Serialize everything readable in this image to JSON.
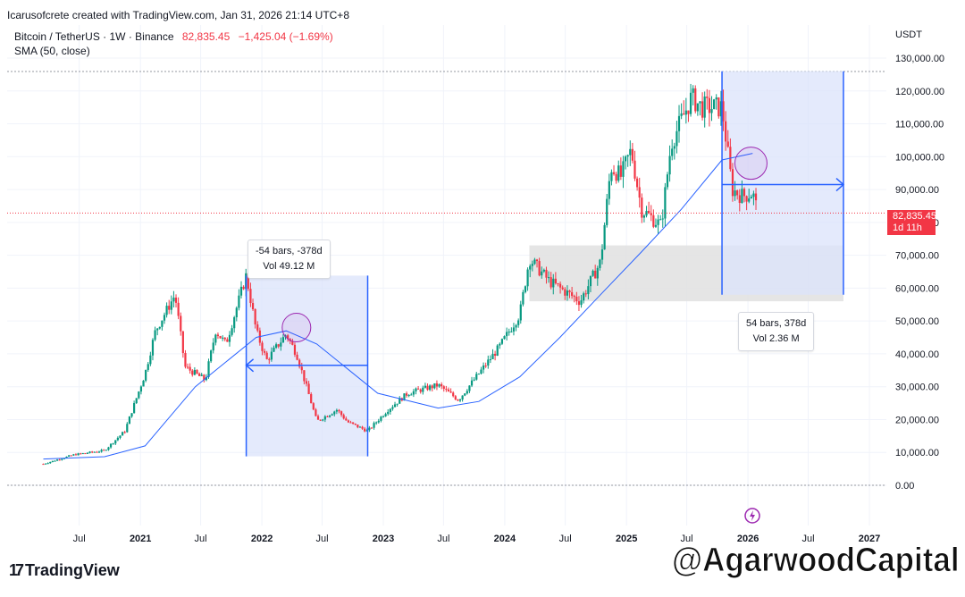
{
  "attribution": "Icarusofcrete created with TradingView.com, Jan 31, 2026 21:14 UTC+8",
  "header": {
    "symbol": "Bitcoin / TetherUS · 1W · Binance",
    "last": "82,835.45",
    "change": "−1,425.04 (−1.69%)",
    "indicator": "SMA (50, close)"
  },
  "currency": "USDT",
  "price_label": {
    "price": "82,835.45",
    "countdown": "1d 11h"
  },
  "left_measure": {
    "bars": "-54 bars, -378d",
    "vol": "Vol 49.12 M"
  },
  "right_measure": {
    "bars": "54 bars, 378d",
    "vol": "Vol 2.36 M"
  },
  "brand": "TradingView",
  "watermark": "@AgarwoodCapital",
  "colors": {
    "up": "#089981",
    "down": "#f23645",
    "sma": "#2962ff",
    "measure_fill": "#dbe3fb",
    "measure_line": "#2962ff",
    "zone": "#e0e0e0",
    "circle": "#9c27b0"
  },
  "chart_data": {
    "type": "candlestick",
    "title": "Bitcoin / TetherUS · 1W · Binance",
    "ylim": [
      0,
      130000
    ],
    "y_ticks": [
      "130,000.00",
      "120,000.00",
      "110,000.00",
      "100,000.00",
      "90,000.00",
      "80,000.00",
      "70,000.00",
      "60,000.00",
      "50,000.00",
      "40,000.00",
      "30,000.00",
      "20,000.00",
      "10,000.00",
      "0.00"
    ],
    "x_ticks": [
      "Jul",
      "2021",
      "Jul",
      "2022",
      "Jul",
      "2023",
      "Jul",
      "2024",
      "Jul",
      "2025",
      "Jul",
      "2026",
      "Jul",
      "2027"
    ],
    "price_path": [
      [
        "2020-03",
        6500
      ],
      [
        "2020-06",
        9300
      ],
      [
        "2020-09",
        10600
      ],
      [
        "2020-11",
        16500
      ],
      [
        "2021-01",
        34000
      ],
      [
        "2021-02",
        47000
      ],
      [
        "2021-04",
        58000
      ],
      [
        "2021-05",
        36000
      ],
      [
        "2021-07",
        32000
      ],
      [
        "2021-08",
        47000
      ],
      [
        "2021-09",
        43000
      ],
      [
        "2021-11",
        64000
      ],
      [
        "2021-12",
        47000
      ],
      [
        "2022-01",
        38000
      ],
      [
        "2022-03",
        46000
      ],
      [
        "2022-04",
        40000
      ],
      [
        "2022-05",
        30000
      ],
      [
        "2022-06",
        19500
      ],
      [
        "2022-08",
        23000
      ],
      [
        "2022-09",
        19300
      ],
      [
        "2022-11",
        16500
      ],
      [
        "2023-01",
        23000
      ],
      [
        "2023-03",
        28000
      ],
      [
        "2023-06",
        30500
      ],
      [
        "2023-08",
        26000
      ],
      [
        "2023-10",
        34000
      ],
      [
        "2023-12",
        42000
      ],
      [
        "2024-02",
        52000
      ],
      [
        "2024-03",
        69000
      ],
      [
        "2024-05",
        62000
      ],
      [
        "2024-07",
        58000
      ],
      [
        "2024-08",
        56000
      ],
      [
        "2024-10",
        68000
      ],
      [
        "2024-11",
        97000
      ],
      [
        "2024-12",
        94000
      ],
      [
        "2025-01",
        102000
      ],
      [
        "2025-02",
        84000
      ],
      [
        "2025-04",
        79000
      ],
      [
        "2025-05",
        104000
      ],
      [
        "2025-07",
        118000
      ],
      [
        "2025-08",
        115000
      ],
      [
        "2025-10",
        115000
      ],
      [
        "2025-11",
        90000
      ],
      [
        "2025-12",
        88000
      ],
      [
        "2026-01",
        89000
      ],
      [
        "2026-01-31",
        82835.45
      ]
    ],
    "sma_path": [
      [
        "2020-03",
        8000
      ],
      [
        "2020-09",
        8700
      ],
      [
        "2021-01",
        12000
      ],
      [
        "2021-06",
        30000
      ],
      [
        "2021-12",
        45000
      ],
      [
        "2022-03",
        47000
      ],
      [
        "2022-06",
        43000
      ],
      [
        "2022-12",
        28000
      ],
      [
        "2023-06",
        23500
      ],
      [
        "2023-10",
        25500
      ],
      [
        "2024-02",
        33000
      ],
      [
        "2024-06",
        45000
      ],
      [
        "2024-10",
        58000
      ],
      [
        "2025-02",
        71000
      ],
      [
        "2025-06",
        84000
      ],
      [
        "2025-10",
        99000
      ],
      [
        "2026-01",
        101000
      ]
    ],
    "zones": [
      {
        "from": "2024-03",
        "to": "2026-10",
        "y1": 56000,
        "y2": 73000
      }
    ],
    "measures": [
      {
        "from": "2022-11",
        "to": "2021-11",
        "y1": 8800,
        "y2": 63800,
        "arrow_y": 36500,
        "direction": "left"
      },
      {
        "from": "2025-10",
        "to": "2026-10",
        "y1": 58000,
        "y2": 126000,
        "arrow_y": 91500,
        "direction": "right"
      }
    ]
  }
}
